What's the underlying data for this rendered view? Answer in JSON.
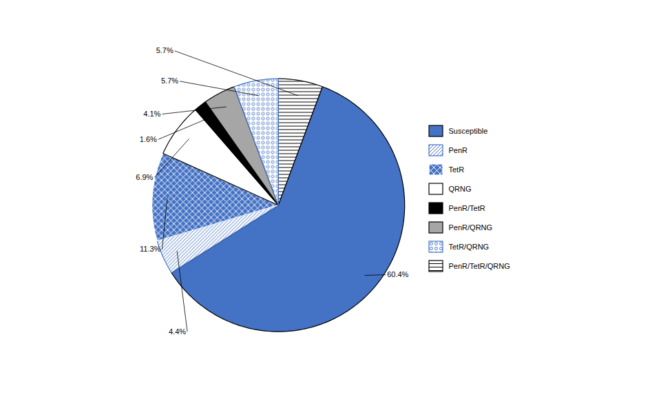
{
  "chart_data": {
    "type": "pie",
    "categories": [
      "PenR/TetR/QRNG",
      "Susceptible",
      "PenR",
      "TetR",
      "QRNG",
      "PenR/TetR",
      "PenR/QRNG",
      "TetR/QRNG"
    ],
    "values": [
      5.7,
      60.4,
      4.4,
      11.3,
      6.9,
      1.6,
      4.1,
      5.7
    ],
    "value_labels": [
      "5.7%",
      "60.4%",
      "4.4%",
      "11.3%",
      "6.9%",
      "1.6%",
      "4.1%",
      "5.7%"
    ],
    "data_labels": true,
    "colors": [
      "#FFFFFF",
      "#4472C4",
      "#FFFFFF",
      "#4472C4",
      "#FFFFFF",
      "#000000",
      "#A6A6A6",
      "#FFFFFF"
    ],
    "legend": "right",
    "legend_entries": [
      "Susceptible",
      "PenR",
      "TetR",
      "QRNG",
      "PenR/TetR",
      "PenR/QRNG",
      "TetR/QRNG",
      "PenR/TetR/QRNG"
    ]
  }
}
